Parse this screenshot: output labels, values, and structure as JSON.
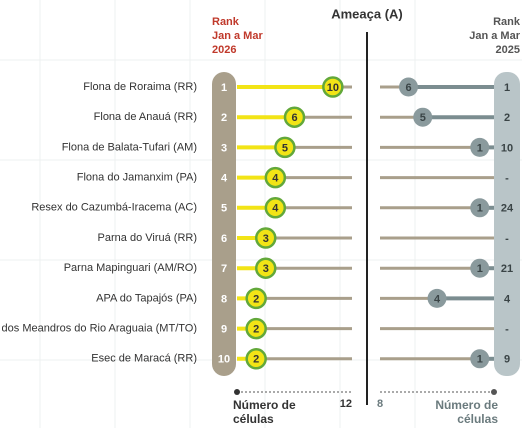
{
  "chart_data": {
    "type": "lollipop-rank",
    "title": "Ameaça (A)",
    "left_header": [
      "Rank",
      "Jan a Mar",
      "2026"
    ],
    "right_header": [
      "Rank",
      "Jan a Mar",
      "2025"
    ],
    "categories": [
      "Flona de Roraima (RR)",
      "Flona de Anauá (RR)",
      "Flona de Balata-Tufari (AM)",
      "Flona do Jamanxim (PA)",
      "Resex do Cazumbá-Iracema (AC)",
      "Parna do Viruá (RR)",
      "Parna Mapinguari (AM/RO)",
      "APA do Tapajós (PA)",
      "APA dos Meandros do Rio Araguaia (MT/TO)",
      "Esec de Maracá (RR)"
    ],
    "series": [
      {
        "values": [
          10,
          6,
          5,
          4,
          4,
          3,
          3,
          2,
          2,
          2
        ],
        "color": "#f2e416",
        "ranks": [
          1,
          2,
          3,
          4,
          5,
          6,
          7,
          8,
          9,
          10
        ]
      },
      {
        "values": [
          6,
          5,
          1,
          null,
          1,
          null,
          1,
          4,
          null,
          1
        ],
        "color": "#7b8d90",
        "ranks": [
          1,
          2,
          10,
          null,
          24,
          null,
          21,
          4,
          null,
          9
        ],
        "rank_labels": [
          "1",
          "2",
          "10",
          "-",
          "24",
          "-",
          "21",
          "4",
          "-",
          "9"
        ]
      }
    ],
    "xlim": [
      0,
      12
    ],
    "xticks": [
      12
    ],
    "x2lim": [
      0,
      8
    ],
    "x2ticks": [
      8
    ],
    "x_label": [
      "Número de",
      "células"
    ],
    "x2_label": [
      "Número de",
      "células"
    ]
  }
}
